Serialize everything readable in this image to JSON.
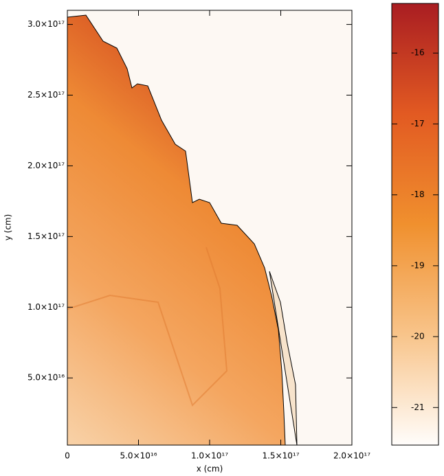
{
  "chart_data": {
    "type": "image",
    "xlabel": "x (cm)",
    "ylabel": "y (cm)",
    "xlim": [
      0,
      2e+17
    ],
    "ylim": [
      2500000000000000.0,
      3.1e+17
    ],
    "xticks": [
      0,
      {
        "value": 5e+16,
        "label": "5.0×10¹⁶"
      },
      {
        "value": 1e+17,
        "label": "1.0×10¹⁷"
      },
      {
        "value": 1.5e+17,
        "label": "1.5×10¹⁷"
      },
      {
        "value": 2e+17,
        "label": "2.0×10¹⁷"
      }
    ],
    "yticks": [
      {
        "value": 5e+16,
        "label": "5.0×10¹⁶"
      },
      {
        "value": 1e+17,
        "label": "1.0×10¹⁷"
      },
      {
        "value": 1.5e+17,
        "label": "1.5×10¹⁷"
      },
      {
        "value": 2e+17,
        "label": "2.0×10¹⁷"
      },
      {
        "value": 2.5e+17,
        "label": "2.5×10¹⁷"
      },
      {
        "value": 3e+17,
        "label": "3.0×10¹⁷"
      }
    ],
    "colorbar": {
      "lim": [
        -21.53,
        -15.3
      ],
      "ticks": [
        -21,
        -20,
        -19,
        -18,
        -17,
        -16
      ],
      "colors": [
        "#fffdfb",
        "#f8c48a",
        "#f0902e",
        "#e25a22",
        "#a91d22"
      ]
    }
  }
}
